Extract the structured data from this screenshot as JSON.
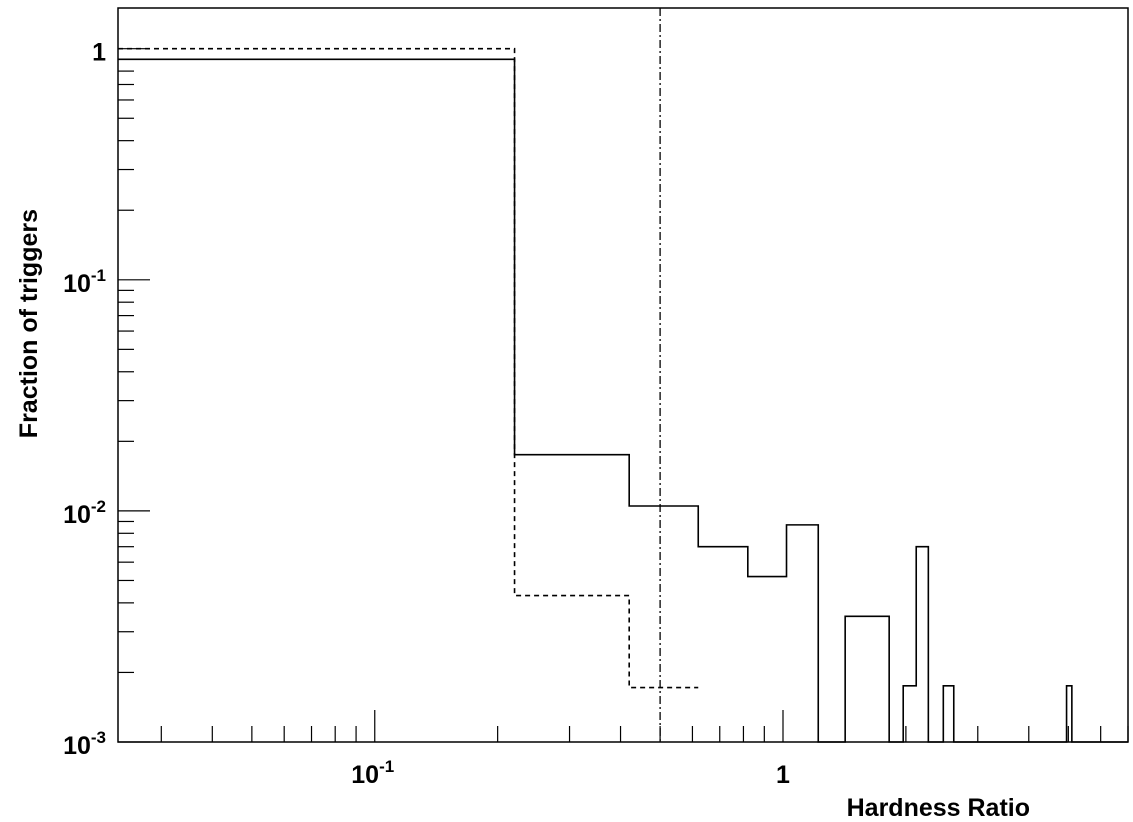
{
  "chart_data": {
    "type": "histogram",
    "title": "",
    "xlabel": "Hardness Ratio",
    "ylabel": "Fraction of triggers",
    "x_scale": "log",
    "y_scale": "log",
    "xlim": [
      0.0235,
      7.0
    ],
    "ylim": [
      0.001,
      1.5
    ],
    "grid": false,
    "legend": "none",
    "x_tick_labels": [
      {
        "value": 0.1,
        "base": "10",
        "exp": "-1"
      },
      {
        "value": 1,
        "base": "1",
        "exp": ""
      }
    ],
    "y_tick_labels": [
      {
        "value": 1,
        "base": "1",
        "exp": ""
      },
      {
        "value": 0.1,
        "base": "10",
        "exp": "-1"
      },
      {
        "value": 0.01,
        "base": "10",
        "exp": "-2"
      },
      {
        "value": 0.001,
        "base": "10",
        "exp": "-3"
      }
    ],
    "series": [
      {
        "style": "solid",
        "bins": [
          {
            "x0": 0.0235,
            "x1": 0.22,
            "y": 0.9
          },
          {
            "x0": 0.22,
            "x1": 0.42,
            "y": 0.0175
          },
          {
            "x0": 0.42,
            "x1": 0.62,
            "y": 0.0105
          },
          {
            "x0": 0.62,
            "x1": 0.82,
            "y": 0.007
          },
          {
            "x0": 0.82,
            "x1": 1.02,
            "y": 0.0052
          },
          {
            "x0": 1.02,
            "x1": 1.22,
            "y": 0.0087
          },
          {
            "x0": 1.22,
            "x1": 1.42,
            "y": 0.001
          },
          {
            "x0": 1.42,
            "x1": 1.82,
            "y": 0.0035
          },
          {
            "x0": 1.82,
            "x1": 1.97,
            "y": 0.001
          },
          {
            "x0": 1.97,
            "x1": 2.12,
            "y": 0.00175
          },
          {
            "x0": 2.12,
            "x1": 2.27,
            "y": 0.007
          },
          {
            "x0": 2.27,
            "x1": 2.47,
            "y": 0.001
          },
          {
            "x0": 2.47,
            "x1": 2.62,
            "y": 0.00175
          },
          {
            "x0": 2.62,
            "x1": 4.95,
            "y": 0.001
          },
          {
            "x0": 4.95,
            "x1": 5.1,
            "y": 0.00175
          },
          {
            "x0": 5.1,
            "x1": 7.0,
            "y": 0.001
          }
        ]
      },
      {
        "style": "dashed",
        "bins": [
          {
            "x0": 0.0235,
            "x1": 0.22,
            "y": 1.0
          },
          {
            "x0": 0.22,
            "x1": 0.42,
            "y": 0.0043
          },
          {
            "x0": 0.42,
            "x1": 0.62,
            "y": 0.00172
          }
        ]
      }
    ],
    "vertical_line": {
      "x": 0.5,
      "style": "dash-dot"
    }
  }
}
